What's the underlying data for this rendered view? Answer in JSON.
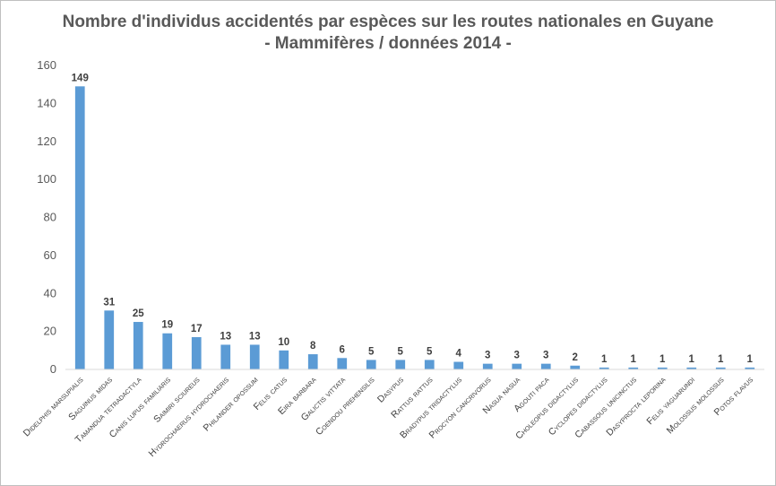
{
  "chart_data": {
    "type": "bar",
    "title_line1": "Nombre d'individus accidentés par espèces sur les routes nationales en Guyane",
    "title_line2": "- Mammifères / données 2014 -",
    "xlabel": "",
    "ylabel": "",
    "ylim": [
      0,
      160
    ],
    "yticks": [
      0,
      20,
      40,
      60,
      80,
      100,
      120,
      140,
      160
    ],
    "grid": false,
    "legend": "none",
    "bar_color": "#5b9bd5",
    "categories": [
      "Didelphis marsupialis",
      "Saguinus midas",
      "Tamandua tetradactyla",
      "Canis lupus familiaris",
      "Saimiri sciureus",
      "Hydrochaerus hydrochaeris",
      "Philander opossum",
      "Felis catus",
      "Eira barbara",
      "Galictis vittata",
      "Coendou prehensilis",
      "Dasypus",
      "Rattus rattus",
      "Bradypus tridactylus",
      "Procyon cancrivorus",
      "Nasua nasua",
      "Agouti paca",
      "Choleopus didactylus",
      "Cyclopes didactylus",
      "Cabassous unicinctus",
      "Dasyprocta leporina",
      "Felis yaguarundi",
      "Molossus molossus",
      "Potos flavus"
    ],
    "values": [
      149,
      31,
      25,
      19,
      17,
      13,
      13,
      10,
      8,
      6,
      5,
      5,
      5,
      4,
      3,
      3,
      3,
      2,
      1,
      1,
      1,
      1,
      1,
      1
    ]
  }
}
